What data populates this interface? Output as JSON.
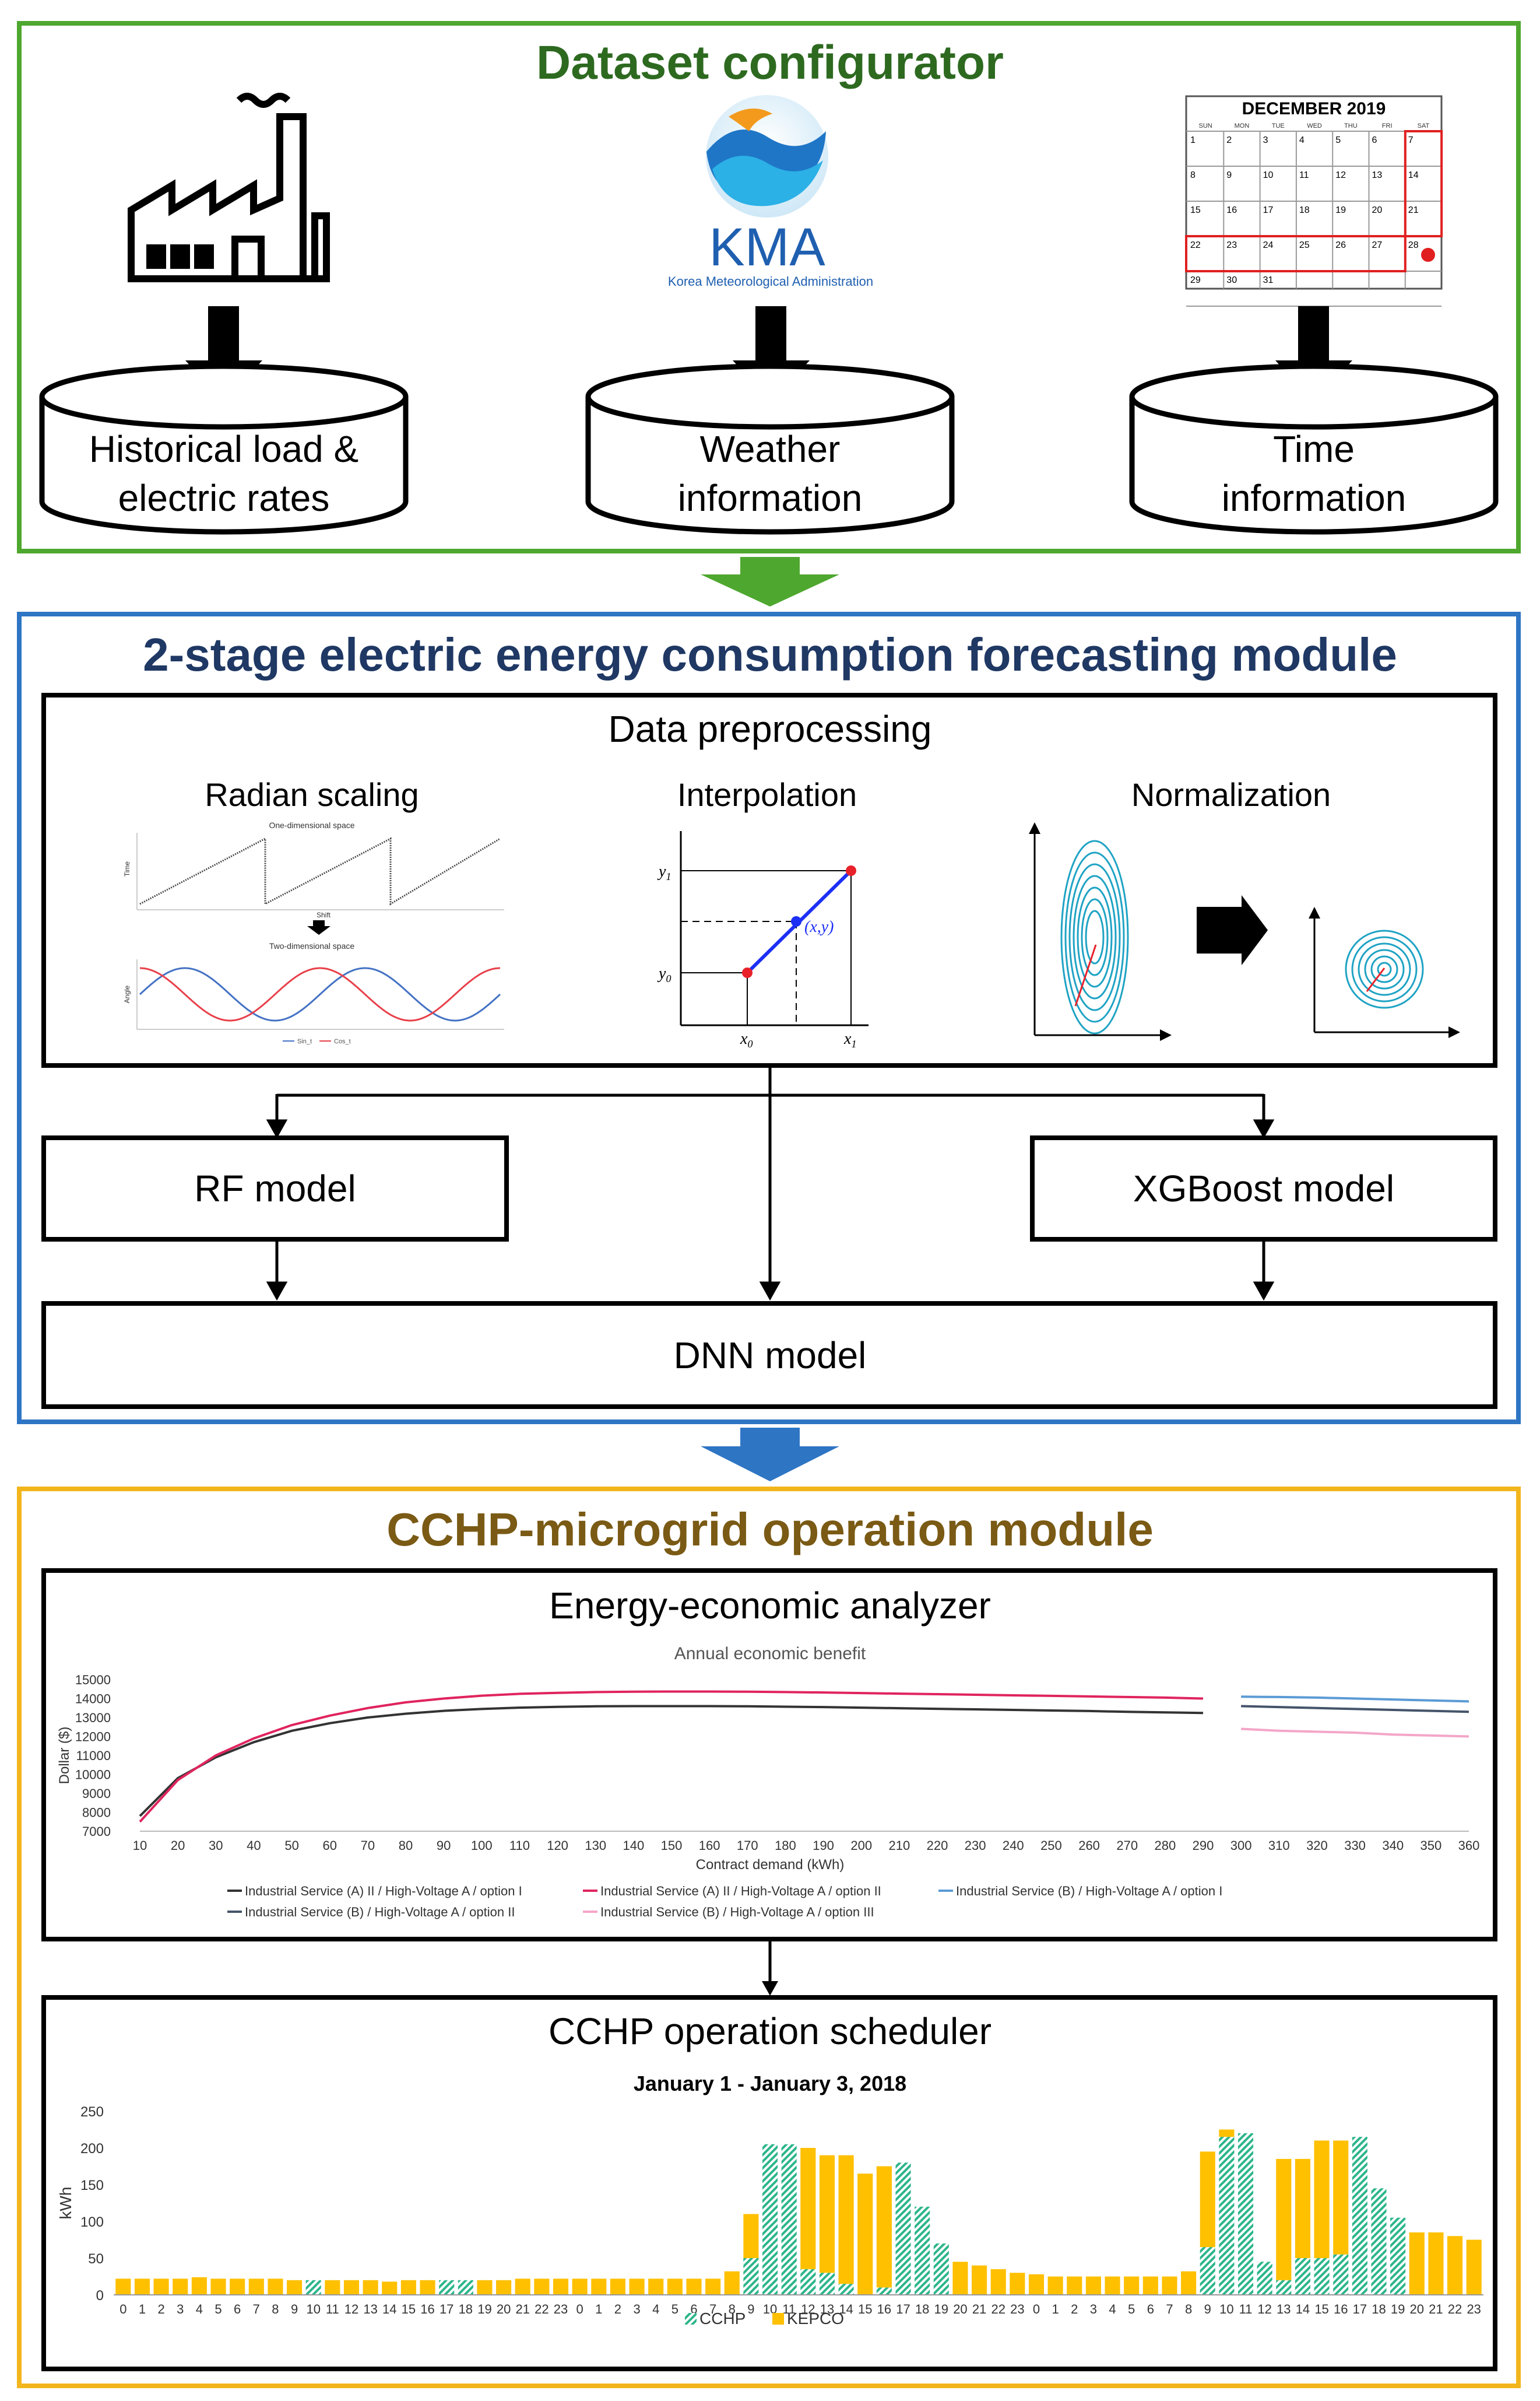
{
  "colors": {
    "green": "#4ea72e",
    "blue": "#2e75c4",
    "gold": "#f2b51c",
    "title_green": "#2d6a20",
    "title_navy": "#1f3864",
    "title_brown": "#7a5a14",
    "red_line": "#e0245e",
    "dark_line": "#333333",
    "cchp": "#2cb58a",
    "kepco": "#ffc000"
  },
  "dataset": {
    "title": "Dataset configurator",
    "kma_logo": "KMA",
    "kma_sub": "Korea Meteorological Administration",
    "calendar": {
      "title": "DECEMBER  2019",
      "days": [
        "SUN",
        "MON",
        "TUE",
        "WED",
        "THU",
        "FRI",
        "SAT"
      ],
      "weeks": [
        [
          "1",
          "2",
          "3",
          "4",
          "5",
          "6",
          "7"
        ],
        [
          "8",
          "9",
          "10",
          "11",
          "12",
          "13",
          "14"
        ],
        [
          "15",
          "16",
          "17",
          "18",
          "19",
          "20",
          "21"
        ],
        [
          "22",
          "23",
          "24",
          "25",
          "26",
          "27",
          "28"
        ],
        [
          "29",
          "30",
          "31",
          "",
          "",
          "",
          ""
        ]
      ]
    },
    "db": [
      {
        "line1": "Historical load &",
        "line2": "electric rates"
      },
      {
        "line1": "Weather",
        "line2": "information"
      },
      {
        "line1": "Time",
        "line2": "information"
      }
    ]
  },
  "forecast": {
    "title": "2-stage electric energy consumption forecasting module",
    "preproc_title": "Data preprocessing",
    "radian": {
      "title": "Radian scaling",
      "sub1": "One-dimensional space",
      "sub2": "Two-dimensional space",
      "arrow_label": "Shift",
      "y1": "Time",
      "y2": "Angle",
      "legend1": "Sin_t",
      "legend2": "Cos_t"
    },
    "interp": {
      "title": "Interpolation",
      "y1": "y",
      "y1sub": "1",
      "y0": "y",
      "y0sub": "0",
      "x0": "x",
      "x0sub": "0",
      "x1": "x",
      "x1sub": "1",
      "pt": "(x,y)"
    },
    "norm": {
      "title": "Normalization"
    },
    "rf": "RF model",
    "xgb": "XGBoost model",
    "dnn": "DNN model"
  },
  "operation": {
    "title": "CCHP-microgrid operation module",
    "analyzer_title": "Energy-economic analyzer",
    "scheduler_title": "CCHP operation scheduler"
  },
  "chart_data": [
    {
      "type": "line",
      "title": "Annual economic benefit",
      "xlabel": "Contract demand (kWh)",
      "ylabel": "Dollar ($)",
      "ylim": [
        7000,
        15000
      ],
      "yticks": [
        "7000",
        "8000",
        "9000",
        "10000",
        "11000",
        "12000",
        "13000",
        "14000",
        "15000"
      ],
      "x": [
        10,
        20,
        30,
        40,
        50,
        60,
        70,
        80,
        90,
        100,
        110,
        120,
        130,
        140,
        150,
        160,
        170,
        180,
        190,
        200,
        210,
        220,
        230,
        240,
        250,
        260,
        270,
        280,
        290,
        300,
        310,
        320,
        330,
        340,
        350,
        360
      ],
      "series": [
        {
          "name": "Industrial Service (A) II / High-Voltage A / option I",
          "color": "#333333",
          "values": [
            7800,
            9800,
            10900,
            11700,
            12300,
            12700,
            13000,
            13200,
            13350,
            13450,
            13520,
            13560,
            13590,
            13600,
            13600,
            13600,
            13590,
            13570,
            13550,
            13520,
            13490,
            13460,
            13430,
            13400,
            13370,
            13340,
            13300,
            13270,
            13240,
            null,
            null,
            null,
            null,
            null,
            null,
            null
          ]
        },
        {
          "name": "Industrial Service (A) II / High-Voltage A / option II",
          "color": "#e0245e",
          "values": [
            7500,
            9700,
            11000,
            11900,
            12600,
            13100,
            13500,
            13800,
            14000,
            14150,
            14250,
            14300,
            14340,
            14360,
            14370,
            14370,
            14360,
            14340,
            14320,
            14290,
            14260,
            14230,
            14200,
            14170,
            14140,
            14110,
            14080,
            14050,
            14000,
            null,
            null,
            null,
            null,
            null,
            null,
            null
          ]
        },
        {
          "name": "Industrial Service (B) / High-Voltage A / option I",
          "color": "#5b9bd5",
          "values": [
            null,
            null,
            null,
            null,
            null,
            null,
            null,
            null,
            null,
            null,
            null,
            null,
            null,
            null,
            null,
            null,
            null,
            null,
            null,
            null,
            null,
            null,
            null,
            null,
            null,
            null,
            null,
            null,
            null,
            14100,
            14080,
            14050,
            14000,
            13950,
            13900,
            13850
          ]
        },
        {
          "name": "Industrial Service (B) / High-Voltage A / option II",
          "color": "#44546a",
          "values": [
            null,
            null,
            null,
            null,
            null,
            null,
            null,
            null,
            null,
            null,
            null,
            null,
            null,
            null,
            null,
            null,
            null,
            null,
            null,
            null,
            null,
            null,
            null,
            null,
            null,
            null,
            null,
            null,
            null,
            13600,
            13550,
            13500,
            13450,
            13400,
            13350,
            13300
          ]
        },
        {
          "name": "Industrial Service (B) / High-Voltage A / option III",
          "color": "#f4a6c8",
          "values": [
            null,
            null,
            null,
            null,
            null,
            null,
            null,
            null,
            null,
            null,
            null,
            null,
            null,
            null,
            null,
            null,
            null,
            null,
            null,
            null,
            null,
            null,
            null,
            null,
            null,
            null,
            null,
            null,
            null,
            12400,
            12300,
            12250,
            12200,
            12100,
            12050,
            12000
          ]
        }
      ]
    },
    {
      "type": "bar",
      "title": "January 1 - January 3, 2018",
      "ylabel": "kWh",
      "ylim": [
        0,
        250
      ],
      "yticks": [
        "0",
        "50",
        "100",
        "150",
        "200",
        "250"
      ],
      "categories": [
        "0",
        "1",
        "2",
        "3",
        "4",
        "5",
        "6",
        "7",
        "8",
        "9",
        "10",
        "11",
        "12",
        "13",
        "14",
        "15",
        "16",
        "17",
        "18",
        "19",
        "20",
        "21",
        "22",
        "23",
        "0",
        "1",
        "2",
        "3",
        "4",
        "5",
        "6",
        "7",
        "8",
        "9",
        "10",
        "11",
        "12",
        "13",
        "14",
        "15",
        "16",
        "17",
        "18",
        "19",
        "20",
        "21",
        "22",
        "23",
        "0",
        "1",
        "2",
        "3",
        "4",
        "5",
        "6",
        "7",
        "8",
        "9",
        "10",
        "11",
        "12",
        "13",
        "14",
        "15",
        "16",
        "17",
        "18",
        "19",
        "20",
        "21",
        "22",
        "23"
      ],
      "series": [
        {
          "name": "CCHP",
          "color": "#2cb58a",
          "values": [
            0,
            0,
            0,
            0,
            0,
            0,
            0,
            0,
            0,
            0,
            20,
            0,
            0,
            0,
            0,
            0,
            0,
            20,
            20,
            0,
            0,
            0,
            0,
            0,
            0,
            0,
            0,
            0,
            0,
            0,
            0,
            0,
            0,
            50,
            205,
            205,
            35,
            30,
            15,
            0,
            10,
            180,
            120,
            70,
            0,
            0,
            0,
            0,
            0,
            0,
            0,
            0,
            0,
            0,
            0,
            0,
            0,
            65,
            215,
            220,
            45,
            20,
            50,
            50,
            55,
            215,
            145,
            105,
            0,
            0,
            0,
            0
          ]
        },
        {
          "name": "KEPCO",
          "color": "#ffc000",
          "values": [
            22,
            22,
            22,
            22,
            24,
            22,
            22,
            22,
            22,
            20,
            0,
            20,
            20,
            20,
            18,
            20,
            20,
            0,
            0,
            20,
            20,
            22,
            22,
            22,
            22,
            22,
            22,
            22,
            22,
            22,
            22,
            22,
            32,
            60,
            0,
            0,
            165,
            160,
            175,
            165,
            165,
            0,
            0,
            0,
            45,
            40,
            35,
            30,
            28,
            25,
            25,
            25,
            25,
            25,
            25,
            25,
            32,
            130,
            10,
            0,
            0,
            165,
            135,
            160,
            155,
            0,
            0,
            0,
            85,
            85,
            80,
            75
          ]
        }
      ]
    }
  ]
}
